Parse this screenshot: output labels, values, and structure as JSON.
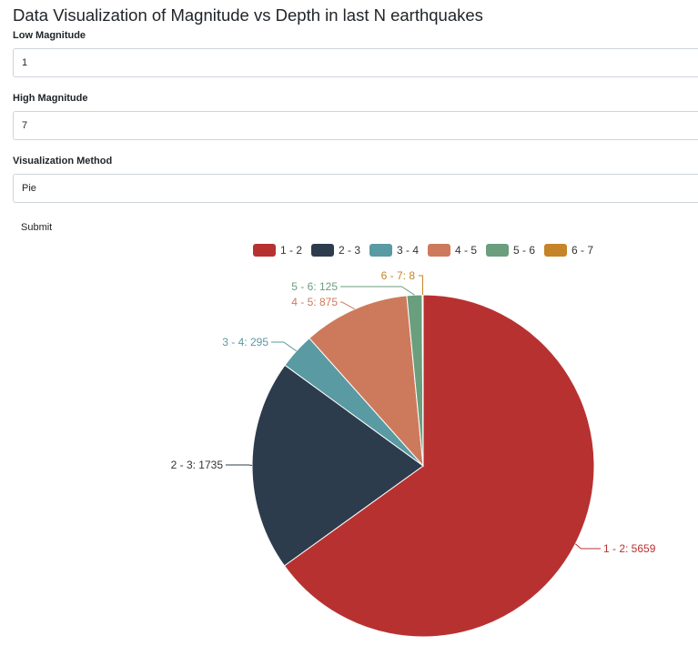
{
  "page": {
    "title": "Data Visualization of Magnitude vs Depth in last N earthquakes"
  },
  "form": {
    "low_label": "Low Magnitude",
    "low_value": "1",
    "high_label": "High Magnitude",
    "high_value": "7",
    "method_label": "Visualization Method",
    "method_value": "Pie",
    "submit_label": "Submit"
  },
  "chart_data": {
    "type": "pie",
    "legend_position": "top",
    "categories": [
      "1 - 2",
      "2 - 3",
      "3 - 4",
      "4 - 5",
      "5 - 6",
      "6 - 7"
    ],
    "values": [
      5659,
      1735,
      295,
      875,
      125,
      8
    ],
    "slice_labels": [
      "1 - 2: 5659",
      "2 - 3: 1735",
      "3 - 4: 295",
      "4 - 5: 875",
      "5 - 6: 125",
      "6 - 7: 8"
    ],
    "colors": [
      "#b83131",
      "#2d3c4d",
      "#5a9aa2",
      "#cd7a5c",
      "#6b9e7d",
      "#c58428"
    ]
  }
}
